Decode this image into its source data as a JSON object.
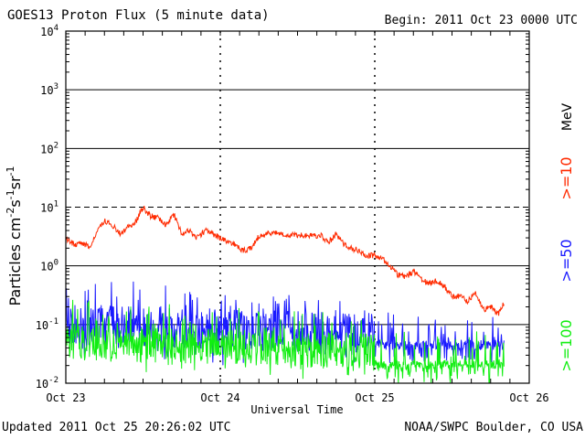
{
  "header": {
    "title": "GOES13 Proton Flux (5 minute data)",
    "begin": "Begin: 2011 Oct 23 0000 UTC"
  },
  "footer": {
    "updated": "Updated 2011 Oct 25 20:26:02 UTC",
    "credit": "NOAA/SWPC Boulder, CO USA"
  },
  "colors": {
    "gt10": "#ff2a00",
    "gt50": "#1a1aff",
    "gt100": "#11ee11",
    "axis": "#000000"
  },
  "chart_data": {
    "type": "line",
    "title": "GOES13 Proton Flux (5 minute data)",
    "xlabel": "Universal Time",
    "ylabel": "Particles cm-2s-1sr-1",
    "y_scale": "log",
    "ylim": [
      0.01,
      10000
    ],
    "xlim": [
      0,
      3
    ],
    "x_units": "days since 2011 Oct 23 0000 UTC",
    "x_ticks": [
      {
        "x": 0,
        "label": "Oct 23"
      },
      {
        "x": 1,
        "label": "Oct 24"
      },
      {
        "x": 2,
        "label": "Oct 25"
      },
      {
        "x": 3,
        "label": "Oct 26"
      }
    ],
    "y_ticks": [
      {
        "exp": -2,
        "label": "10",
        "sup": "-2"
      },
      {
        "exp": -1,
        "label": "10",
        "sup": "-1"
      },
      {
        "exp": 0,
        "label": "10",
        "sup": "0"
      },
      {
        "exp": 1,
        "label": "10",
        "sup": "1"
      },
      {
        "exp": 2,
        "label": "10",
        "sup": "2"
      },
      {
        "exp": 3,
        "label": "10",
        "sup": "3"
      },
      {
        "exp": 4,
        "label": "10",
        "sup": "4"
      }
    ],
    "thresholds": [
      {
        "value": 10,
        "style": "dashed"
      },
      {
        "value": 0.1,
        "style": "solid"
      }
    ],
    "legend": [
      {
        "label": ">=10",
        "unit": "MeV",
        "color": "#ff2a00"
      },
      {
        "label": ">=50",
        "color": "#1a1aff"
      },
      {
        "label": ">=100",
        "color": "#11ee11"
      }
    ],
    "series": [
      {
        "name": ">=10 MeV",
        "color": "#ff2a00",
        "x": [
          0.0,
          0.05,
          0.1,
          0.15,
          0.2,
          0.25,
          0.3,
          0.35,
          0.4,
          0.45,
          0.5,
          0.55,
          0.6,
          0.65,
          0.7,
          0.75,
          0.8,
          0.85,
          0.9,
          0.95,
          1.0,
          1.05,
          1.1,
          1.15,
          1.2,
          1.25,
          1.3,
          1.35,
          1.4,
          1.45,
          1.5,
          1.55,
          1.6,
          1.65,
          1.7,
          1.75,
          1.8,
          1.85,
          1.9,
          1.95,
          2.0,
          2.05,
          2.1,
          2.15,
          2.2,
          2.25,
          2.3,
          2.35,
          2.4,
          2.45,
          2.5,
          2.55,
          2.6,
          2.65,
          2.7,
          2.75,
          2.8,
          2.84
        ],
        "y": [
          3.0,
          2.3,
          2.5,
          2.1,
          3.5,
          6.0,
          5.0,
          3.5,
          4.5,
          5.5,
          10.0,
          7.0,
          6.5,
          5.0,
          7.5,
          3.5,
          4.0,
          3.0,
          4.0,
          3.5,
          3.0,
          2.6,
          2.3,
          1.8,
          2.0,
          3.2,
          3.5,
          3.8,
          3.6,
          3.3,
          3.4,
          3.3,
          3.2,
          3.4,
          2.5,
          3.5,
          2.4,
          2.0,
          1.8,
          1.5,
          1.5,
          1.3,
          1.0,
          0.7,
          0.65,
          0.8,
          0.6,
          0.5,
          0.55,
          0.45,
          0.3,
          0.3,
          0.25,
          0.35,
          0.18,
          0.2,
          0.15,
          0.25
        ]
      },
      {
        "name": ">=50",
        "color": "#1a1aff",
        "x": [
          0.0,
          1.99,
          2.0,
          2.84
        ],
        "y": [
          0.1,
          0.07,
          0.045,
          0.045
        ]
      },
      {
        "name": ">=100",
        "color": "#11ee11",
        "x": [
          0.0,
          1.99,
          2.0,
          2.84
        ],
        "y": [
          0.05,
          0.035,
          0.02,
          0.021
        ]
      }
    ]
  }
}
